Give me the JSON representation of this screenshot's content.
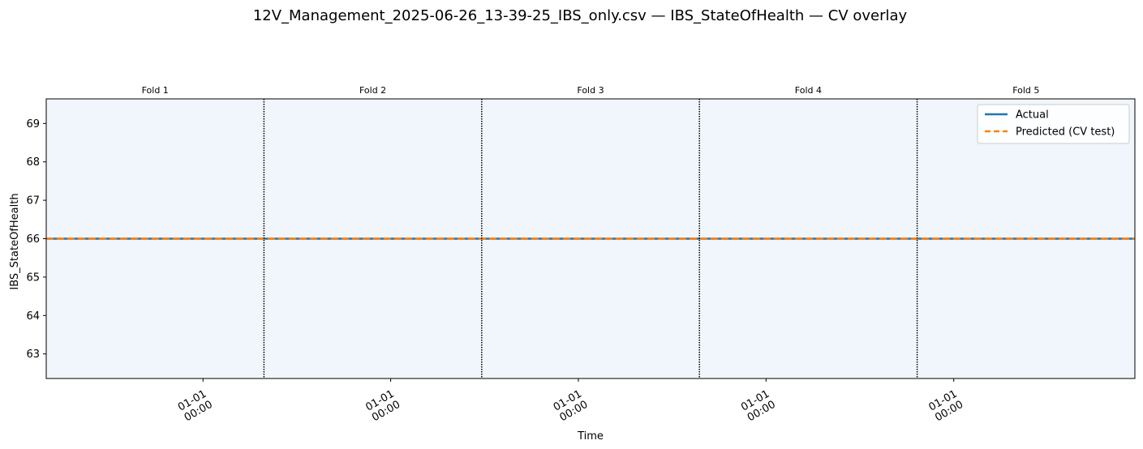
{
  "chart_data": {
    "type": "line",
    "title": "12V_Management_2025-06-26_13-39-25_IBS_only.csv — IBS_StateOfHealth — CV overlay",
    "xlabel": "Time",
    "ylabel": "IBS_StateOfHealth",
    "ylim": [
      62.36,
      69.64
    ],
    "yticks": [
      63,
      64,
      65,
      66,
      67,
      68,
      69
    ],
    "xticks": [
      {
        "line1": "01-01",
        "line2": "00:00"
      },
      {
        "line1": "01-01",
        "line2": "00:00"
      },
      {
        "line1": "01-01",
        "line2": "00:00"
      },
      {
        "line1": "01-01",
        "line2": "00:00"
      },
      {
        "line1": "01-01",
        "line2": "00:00"
      }
    ],
    "folds": [
      "Fold 1",
      "Fold 2",
      "Fold 3",
      "Fold 4",
      "Fold 5"
    ],
    "series": [
      {
        "name": "Actual",
        "value": 66,
        "color": "#1f77b4",
        "style": "solid"
      },
      {
        "name": "Predicted (CV test)",
        "value": 66,
        "color": "#ff7f0e",
        "style": "dashed"
      }
    ],
    "legend_position": "top-right",
    "grid": false,
    "fold_background": "#f0f6fb",
    "fold_separator_color": "#000000"
  }
}
